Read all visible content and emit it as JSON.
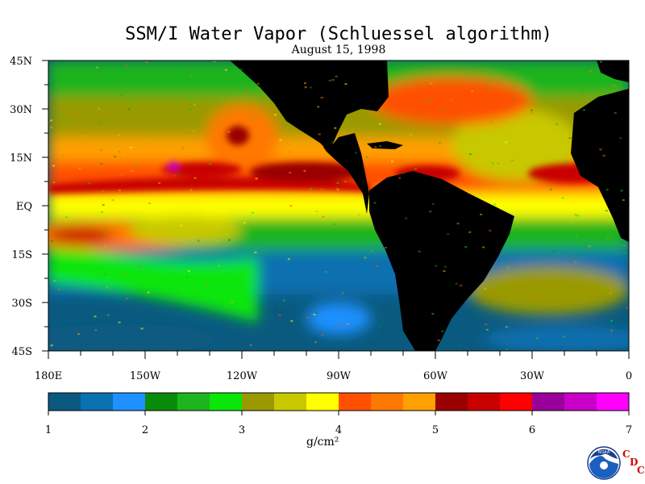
{
  "title": "SSM/I Water Vapor (Schluessel algorithm)",
  "subtitle": "August 15, 1998",
  "lat_labels": [
    "45N",
    "30N",
    "15N",
    "EQ",
    "15S",
    "30S",
    "45S"
  ],
  "lon_labels": [
    "180E",
    "150W",
    "120W",
    "90W",
    "60W",
    "30W",
    "0"
  ],
  "colorbar": {
    "ticks": [
      "1",
      "2",
      "3",
      "4",
      "5",
      "6",
      "7"
    ],
    "unit": "g/cm²",
    "colors": [
      "#0a5a80",
      "#0a70b0",
      "#1e90ff",
      "#0a8c0a",
      "#1eb41e",
      "#0ae60a",
      "#9a9a00",
      "#c8c800",
      "#ffff00",
      "#ff5000",
      "#ff7800",
      "#ffa000",
      "#9a0000",
      "#c80000",
      "#ff0000",
      "#9a009a",
      "#c800c8",
      "#ff00ff"
    ]
  },
  "logo": {
    "agency": "NOAA",
    "letters": [
      "C",
      "D",
      "C"
    ]
  },
  "colors": {
    "land": "#000000",
    "ocean_dry": "#0a5a80"
  }
}
